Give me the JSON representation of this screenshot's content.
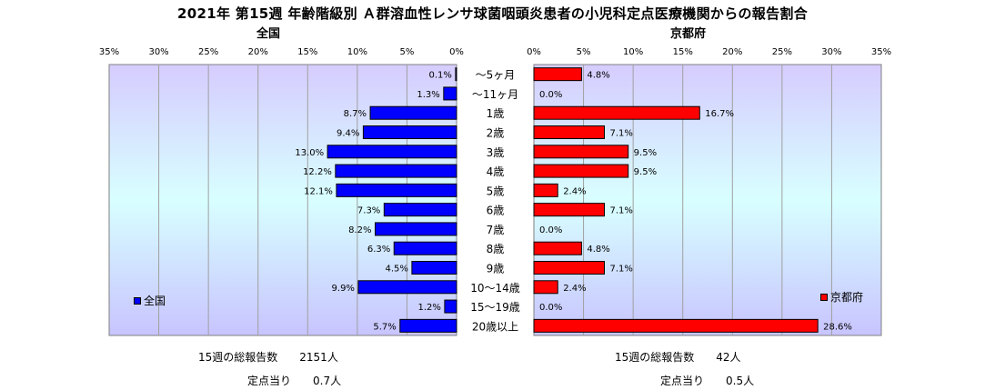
{
  "chart_data": {
    "type": "bar",
    "title": "2021年 第15週 年齢階級別 Ａ群溶血性レンサ球菌咽頭炎患者の小児科定点医療機関からの報告割合",
    "categories": [
      "～5ヶ月",
      "～11ヶ月",
      "1歳",
      "2歳",
      "3歳",
      "4歳",
      "5歳",
      "6歳",
      "7歳",
      "8歳",
      "9歳",
      "10～14歳",
      "15～19歳",
      "20歳以上"
    ],
    "value_suffix": "%",
    "xlim": [
      0,
      35
    ],
    "xticks": [
      "0%",
      "5%",
      "10%",
      "15%",
      "20%",
      "25%",
      "30%",
      "35%"
    ],
    "grid": true,
    "series": [
      {
        "name": "全国",
        "panel": "left",
        "color": "#0000ff",
        "values": [
          0.1,
          1.3,
          8.7,
          9.4,
          13.0,
          12.2,
          12.1,
          7.3,
          8.2,
          6.3,
          4.5,
          9.9,
          1.2,
          5.7
        ]
      },
      {
        "name": "京都府",
        "panel": "right",
        "color": "#ff0000",
        "values": [
          4.8,
          0.0,
          16.7,
          7.1,
          9.5,
          9.5,
          2.4,
          7.1,
          0.0,
          4.8,
          7.1,
          2.4,
          0.0,
          28.6
        ]
      }
    ]
  },
  "panels": {
    "left_title": "全国",
    "right_title": "京都府"
  },
  "legend": {
    "left": "全国",
    "right": "京都府"
  },
  "footer": {
    "left_total_label": "15週の総報告数",
    "left_total_value": "2151人",
    "left_per_label": "定点当り",
    "left_per_value": "0.7人",
    "right_total_label": "15週の総報告数",
    "right_total_value": "42人",
    "right_per_label": "定点当り",
    "right_per_value": "0.5人"
  },
  "colors": {
    "plot_gradient_top": "#d6ccff",
    "plot_gradient_mid": "#d8ffff",
    "plot_gradient_bottom": "#c8c4ff"
  }
}
